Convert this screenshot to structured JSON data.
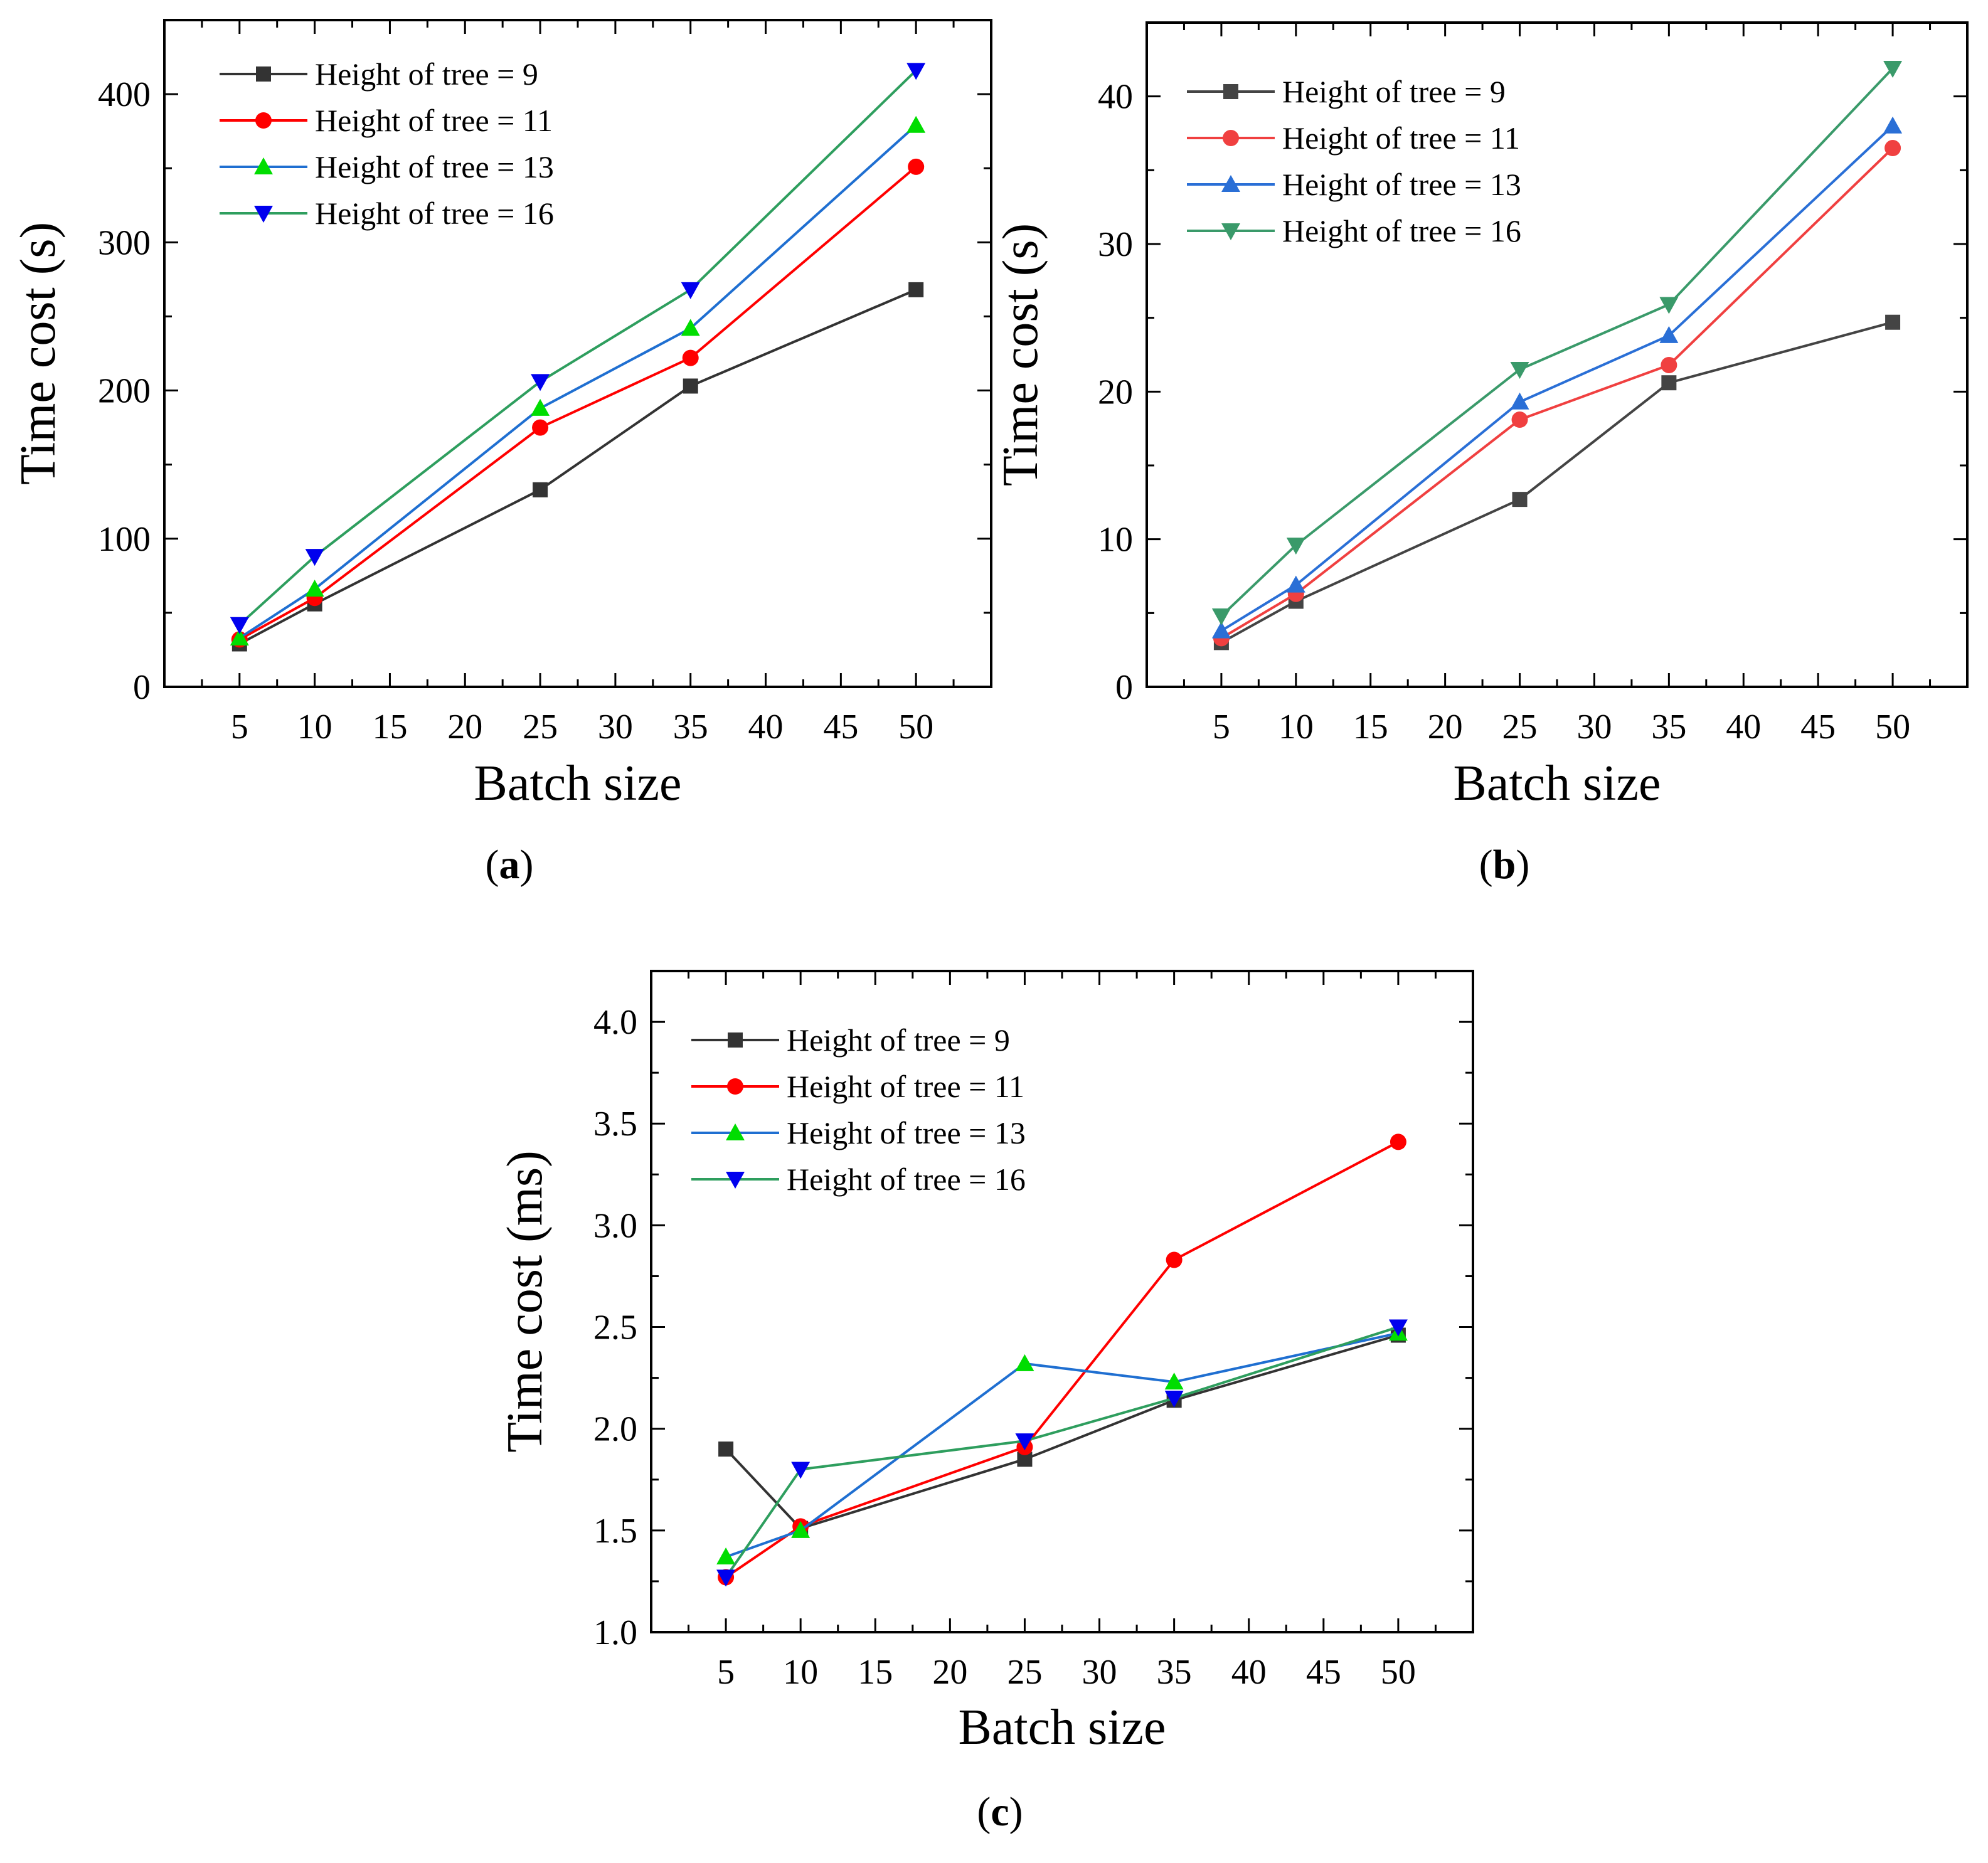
{
  "chart_data": [
    {
      "type": "line",
      "panel_label": "a",
      "xlabel": "Batch size",
      "ylabel": "Time cost (s)",
      "xlim": [
        0,
        55
      ],
      "ylim": [
        0,
        450
      ],
      "xticks": [
        5,
        10,
        15,
        20,
        25,
        30,
        35,
        40,
        45,
        50
      ],
      "yticks": [
        0,
        100,
        200,
        300,
        400
      ],
      "x": [
        5,
        10,
        25,
        35,
        50
      ],
      "legend_position": "top-left",
      "series": [
        {
          "name": "Height of tree = 9",
          "color": "#333333",
          "marker": "square",
          "values": [
            29,
            56,
            133,
            203,
            268
          ]
        },
        {
          "name": "Height of tree = 11",
          "color": "#ff0000",
          "marker": "circle",
          "values": [
            32,
            60,
            175,
            222,
            351
          ]
        },
        {
          "name": "Height of tree = 13",
          "color": "#1f6fd1",
          "markerColor": "#00dd00",
          "marker": "triangle-up",
          "values": [
            33,
            66,
            188,
            242,
            379
          ]
        },
        {
          "name": "Height of tree = 16",
          "color": "#2e9e5e",
          "markerColor": "#0000ee",
          "marker": "triangle-down",
          "values": [
            42,
            88,
            206,
            268,
            416
          ]
        }
      ]
    },
    {
      "type": "line",
      "panel_label": "b",
      "xlabel": "Batch size",
      "ylabel": "Time cost (s)",
      "xlim": [
        0,
        55
      ],
      "ylim": [
        0,
        45
      ],
      "xticks": [
        5,
        10,
        15,
        20,
        25,
        30,
        35,
        40,
        45,
        50
      ],
      "yticks": [
        0,
        10,
        20,
        30,
        40
      ],
      "x": [
        5,
        10,
        25,
        35,
        50
      ],
      "legend_position": "top-left",
      "series": [
        {
          "name": "Height of tree = 9",
          "color": "#444444",
          "marker": "square",
          "values": [
            3.0,
            5.8,
            12.7,
            20.6,
            24.7
          ]
        },
        {
          "name": "Height of tree = 11",
          "color": "#f04040",
          "marker": "circle",
          "values": [
            3.3,
            6.3,
            18.1,
            21.8,
            36.5
          ]
        },
        {
          "name": "Height of tree = 13",
          "color": "#2a6fd6",
          "marker": "triangle-up",
          "values": [
            3.8,
            6.9,
            19.3,
            23.8,
            38.0
          ]
        },
        {
          "name": "Height of tree = 16",
          "color": "#3a9a6a",
          "marker": "triangle-down",
          "values": [
            4.8,
            9.6,
            21.5,
            25.9,
            41.9
          ]
        }
      ]
    },
    {
      "type": "line",
      "panel_label": "c",
      "xlabel": "Batch size",
      "ylabel": "Time cost (ms)",
      "xlim": [
        0,
        55
      ],
      "ylim": [
        1.0,
        4.25
      ],
      "xticks": [
        5,
        10,
        15,
        20,
        25,
        30,
        35,
        40,
        45,
        50
      ],
      "yticks": [
        "1.0",
        "1.5",
        "2.0",
        "2.5",
        "3.0",
        "3.5",
        "4.0"
      ],
      "x": [
        5,
        10,
        25,
        35,
        50
      ],
      "legend_position": "top-left",
      "series": [
        {
          "name": "Height of tree = 9",
          "color": "#333333",
          "marker": "square",
          "values": [
            1.9,
            1.51,
            1.85,
            2.14,
            2.46
          ]
        },
        {
          "name": "Height of tree = 11",
          "color": "#ff0000",
          "marker": "circle",
          "values": [
            1.27,
            1.52,
            1.91,
            2.83,
            3.41
          ]
        },
        {
          "name": "Height of tree = 13",
          "color": "#1f6fd1",
          "markerColor": "#00dd00",
          "marker": "triangle-up",
          "values": [
            1.37,
            1.5,
            2.32,
            2.23,
            2.47
          ]
        },
        {
          "name": "Height of tree = 16",
          "color": "#2e9e5e",
          "markerColor": "#0000ee",
          "marker": "triangle-down",
          "values": [
            1.27,
            1.8,
            1.94,
            2.15,
            2.5
          ]
        }
      ]
    }
  ]
}
